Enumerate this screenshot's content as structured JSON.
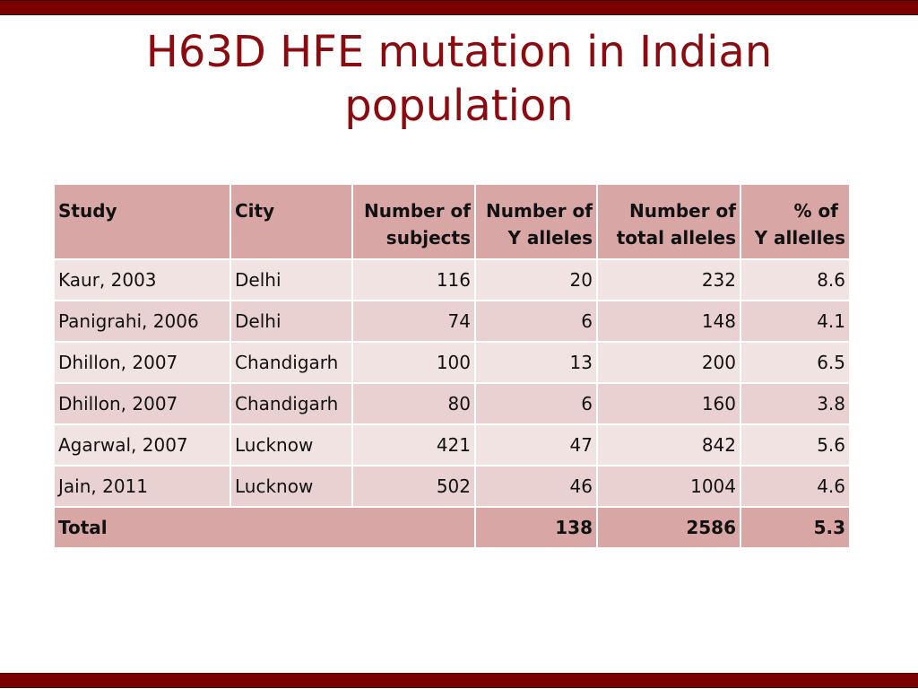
{
  "title": {
    "line1": "H63D HFE mutation in Indian",
    "line2": "population"
  },
  "table": {
    "headers": {
      "study": "Study",
      "city": "City",
      "subjects": [
        "Number of",
        "subjects"
      ],
      "y_alleles": [
        "Number of",
        "Y alleles"
      ],
      "total_alleles": [
        "Number of",
        "total alleles"
      ],
      "percent": [
        "% of",
        "Y allelles"
      ]
    },
    "rows": [
      {
        "study": "Kaur, 2003",
        "city": "Delhi",
        "subjects": "116",
        "y_alleles": "20",
        "total_alleles": "232",
        "percent": "8.6"
      },
      {
        "study": "Panigrahi, 2006",
        "city": "Delhi",
        "subjects": "74",
        "y_alleles": "6",
        "total_alleles": "148",
        "percent": "4.1"
      },
      {
        "study": "Dhillon, 2007",
        "city": "Chandigarh",
        "subjects": "100",
        "y_alleles": "13",
        "total_alleles": "200",
        "percent": "6.5"
      },
      {
        "study": "Dhillon, 2007",
        "city": "Chandigarh",
        "subjects": "80",
        "y_alleles": "6",
        "total_alleles": "160",
        "percent": "3.8"
      },
      {
        "study": "Agarwal, 2007",
        "city": "Lucknow",
        "subjects": "421",
        "y_alleles": "47",
        "total_alleles": "842",
        "percent": "5.6"
      },
      {
        "study": "Jain, 2011",
        "city": "Lucknow",
        "subjects": "502",
        "y_alleles": "46",
        "total_alleles": "1004",
        "percent": "4.6"
      }
    ],
    "total": {
      "label": "Total",
      "y_alleles": "138",
      "total_alleles": "2586",
      "percent": "5.3"
    }
  },
  "colors": {
    "bar": "#7b0000",
    "title": "#8b0c10",
    "header_bg": "#d9a6a6",
    "row_light": "#f2e3e3",
    "row_dark": "#e9d1d1"
  }
}
